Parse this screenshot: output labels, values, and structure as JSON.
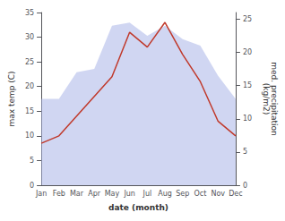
{
  "chart_data": {
    "type": "line",
    "xlabel": "date (month)",
    "ylabel": "max temp (C)",
    "y2label": "med. precipitation\n(kg/m2)",
    "categories": [
      "Jan",
      "Feb",
      "Mar",
      "Apr",
      "May",
      "Jun",
      "Jul",
      "Aug",
      "Sep",
      "Oct",
      "Nov",
      "Dec"
    ],
    "series": [
      {
        "type": "area",
        "axis": "y2",
        "color": "#aab4e8",
        "values": [
          13.0,
          13.0,
          17.0,
          17.5,
          24.0,
          24.5,
          22.5,
          24.0,
          22.0,
          21.0,
          16.5,
          13.0
        ]
      },
      {
        "type": "line",
        "color": "#c0392b",
        "values": [
          8.5,
          10.0,
          14.0,
          18.0,
          22.0,
          31.0,
          28.0,
          33.0,
          26.5,
          21.0,
          13.0,
          10.0
        ]
      }
    ],
    "ylim": [
      0,
      35
    ],
    "yticks": [
      0,
      5,
      10,
      15,
      20,
      25,
      30,
      35
    ],
    "y2lim": [
      0,
      26
    ],
    "y2ticks": [
      0,
      5,
      10,
      15,
      20,
      25
    ],
    "grid": false
  }
}
